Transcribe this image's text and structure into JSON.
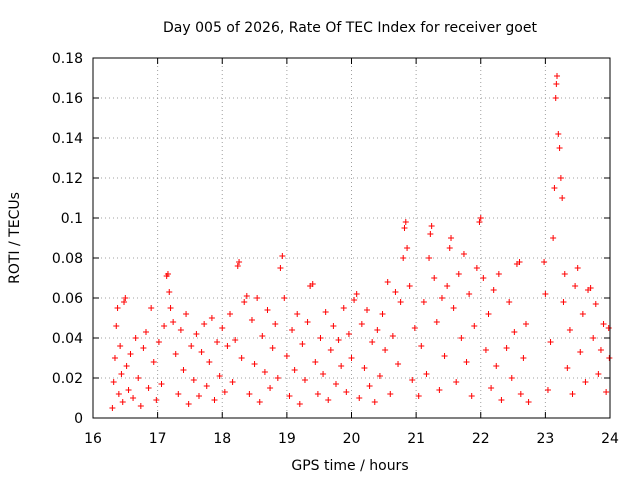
{
  "chart_data": {
    "type": "scatter",
    "title": "Day 005 of 2026, Rate Of TEC Index for receiver goet",
    "xlabel": "GPS time / hours",
    "ylabel": "ROTI / TECUs",
    "xlim": [
      16,
      24
    ],
    "ylim": [
      0,
      0.18
    ],
    "grid": true,
    "x_ticks": [
      16,
      17,
      18,
      19,
      20,
      21,
      22,
      23,
      24
    ],
    "x_tick_labels": [
      "16",
      "17",
      "18",
      "19",
      "20",
      "21",
      "22",
      "23",
      "24"
    ],
    "y_ticks": [
      0,
      0.02,
      0.04,
      0.06,
      0.08,
      0.1,
      0.12,
      0.14,
      0.16,
      0.18
    ],
    "y_tick_labels": [
      "0",
      "0.02",
      "0.04",
      "0.06",
      "0.08",
      "0.1",
      "0.12",
      "0.14",
      "0.16",
      "0.18"
    ],
    "marker": "+",
    "color": "#ff0000",
    "series": [
      {
        "name": "ROTI",
        "points": [
          [
            16.3,
            0.005
          ],
          [
            16.32,
            0.018
          ],
          [
            16.34,
            0.03
          ],
          [
            16.36,
            0.046
          ],
          [
            16.38,
            0.055
          ],
          [
            16.4,
            0.012
          ],
          [
            16.42,
            0.036
          ],
          [
            16.44,
            0.022
          ],
          [
            16.46,
            0.008
          ],
          [
            16.48,
            0.058
          ],
          [
            16.5,
            0.06
          ],
          [
            16.52,
            0.026
          ],
          [
            16.55,
            0.014
          ],
          [
            16.58,
            0.032
          ],
          [
            16.62,
            0.01
          ],
          [
            16.66,
            0.04
          ],
          [
            16.7,
            0.02
          ],
          [
            16.74,
            0.006
          ],
          [
            16.78,
            0.035
          ],
          [
            16.82,
            0.043
          ],
          [
            16.86,
            0.015
          ],
          [
            16.9,
            0.055
          ],
          [
            16.94,
            0.028
          ],
          [
            16.98,
            0.009
          ],
          [
            17.02,
            0.038
          ],
          [
            17.06,
            0.017
          ],
          [
            17.1,
            0.046
          ],
          [
            17.14,
            0.071
          ],
          [
            17.16,
            0.072
          ],
          [
            17.18,
            0.063
          ],
          [
            17.2,
            0.055
          ],
          [
            17.24,
            0.048
          ],
          [
            17.28,
            0.032
          ],
          [
            17.32,
            0.012
          ],
          [
            17.36,
            0.044
          ],
          [
            17.4,
            0.024
          ],
          [
            17.44,
            0.052
          ],
          [
            17.48,
            0.007
          ],
          [
            17.52,
            0.036
          ],
          [
            17.56,
            0.019
          ],
          [
            17.6,
            0.042
          ],
          [
            17.64,
            0.011
          ],
          [
            17.68,
            0.033
          ],
          [
            17.72,
            0.047
          ],
          [
            17.76,
            0.016
          ],
          [
            17.8,
            0.028
          ],
          [
            17.84,
            0.05
          ],
          [
            17.88,
            0.009
          ],
          [
            17.92,
            0.038
          ],
          [
            17.96,
            0.021
          ],
          [
            18.0,
            0.045
          ],
          [
            18.04,
            0.013
          ],
          [
            18.08,
            0.036
          ],
          [
            18.12,
            0.052
          ],
          [
            18.16,
            0.018
          ],
          [
            18.2,
            0.039
          ],
          [
            18.24,
            0.076
          ],
          [
            18.26,
            0.078
          ],
          [
            18.3,
            0.03
          ],
          [
            18.34,
            0.058
          ],
          [
            18.38,
            0.061
          ],
          [
            18.42,
            0.012
          ],
          [
            18.46,
            0.049
          ],
          [
            18.5,
            0.027
          ],
          [
            18.54,
            0.06
          ],
          [
            18.58,
            0.008
          ],
          [
            18.62,
            0.041
          ],
          [
            18.66,
            0.023
          ],
          [
            18.7,
            0.054
          ],
          [
            18.74,
            0.015
          ],
          [
            18.78,
            0.035
          ],
          [
            18.82,
            0.047
          ],
          [
            18.86,
            0.02
          ],
          [
            18.9,
            0.075
          ],
          [
            18.93,
            0.081
          ],
          [
            18.96,
            0.06
          ],
          [
            19.0,
            0.031
          ],
          [
            19.04,
            0.011
          ],
          [
            19.08,
            0.044
          ],
          [
            19.12,
            0.024
          ],
          [
            19.16,
            0.052
          ],
          [
            19.2,
            0.007
          ],
          [
            19.24,
            0.037
          ],
          [
            19.28,
            0.019
          ],
          [
            19.32,
            0.048
          ],
          [
            19.36,
            0.066
          ],
          [
            19.4,
            0.067
          ],
          [
            19.44,
            0.028
          ],
          [
            19.48,
            0.012
          ],
          [
            19.52,
            0.04
          ],
          [
            19.56,
            0.022
          ],
          [
            19.6,
            0.053
          ],
          [
            19.64,
            0.009
          ],
          [
            19.68,
            0.034
          ],
          [
            19.72,
            0.046
          ],
          [
            19.76,
            0.017
          ],
          [
            19.8,
            0.039
          ],
          [
            19.84,
            0.026
          ],
          [
            19.88,
            0.055
          ],
          [
            19.92,
            0.013
          ],
          [
            19.96,
            0.042
          ],
          [
            20.0,
            0.03
          ],
          [
            20.04,
            0.059
          ],
          [
            20.08,
            0.062
          ],
          [
            20.12,
            0.01
          ],
          [
            20.16,
            0.047
          ],
          [
            20.2,
            0.025
          ],
          [
            20.24,
            0.054
          ],
          [
            20.28,
            0.016
          ],
          [
            20.32,
            0.038
          ],
          [
            20.36,
            0.008
          ],
          [
            20.4,
            0.044
          ],
          [
            20.44,
            0.021
          ],
          [
            20.48,
            0.052
          ],
          [
            20.52,
            0.034
          ],
          [
            20.56,
            0.068
          ],
          [
            20.6,
            0.012
          ],
          [
            20.64,
            0.041
          ],
          [
            20.68,
            0.063
          ],
          [
            20.72,
            0.027
          ],
          [
            20.76,
            0.058
          ],
          [
            20.8,
            0.08
          ],
          [
            20.82,
            0.095
          ],
          [
            20.84,
            0.098
          ],
          [
            20.86,
            0.085
          ],
          [
            20.9,
            0.066
          ],
          [
            20.94,
            0.019
          ],
          [
            20.98,
            0.045
          ],
          [
            21.04,
            0.011
          ],
          [
            21.08,
            0.036
          ],
          [
            21.12,
            0.058
          ],
          [
            21.16,
            0.022
          ],
          [
            21.2,
            0.08
          ],
          [
            21.22,
            0.092
          ],
          [
            21.24,
            0.096
          ],
          [
            21.28,
            0.07
          ],
          [
            21.32,
            0.048
          ],
          [
            21.36,
            0.014
          ],
          [
            21.4,
            0.06
          ],
          [
            21.44,
            0.031
          ],
          [
            21.48,
            0.066
          ],
          [
            21.52,
            0.085
          ],
          [
            21.54,
            0.09
          ],
          [
            21.58,
            0.055
          ],
          [
            21.62,
            0.018
          ],
          [
            21.66,
            0.072
          ],
          [
            21.7,
            0.04
          ],
          [
            21.74,
            0.082
          ],
          [
            21.78,
            0.028
          ],
          [
            21.82,
            0.062
          ],
          [
            21.86,
            0.011
          ],
          [
            21.9,
            0.046
          ],
          [
            21.94,
            0.075
          ],
          [
            21.98,
            0.098
          ],
          [
            22.0,
            0.1
          ],
          [
            22.04,
            0.07
          ],
          [
            22.08,
            0.034
          ],
          [
            22.12,
            0.052
          ],
          [
            22.16,
            0.015
          ],
          [
            22.2,
            0.064
          ],
          [
            22.24,
            0.026
          ],
          [
            22.28,
            0.072
          ],
          [
            22.32,
            0.009
          ],
          [
            22.4,
            0.035
          ],
          [
            22.44,
            0.058
          ],
          [
            22.48,
            0.02
          ],
          [
            22.52,
            0.043
          ],
          [
            22.56,
            0.077
          ],
          [
            22.6,
            0.078
          ],
          [
            22.62,
            0.012
          ],
          [
            22.66,
            0.03
          ],
          [
            22.7,
            0.047
          ],
          [
            22.74,
            0.008
          ],
          [
            22.98,
            0.078
          ],
          [
            23.0,
            0.062
          ],
          [
            23.04,
            0.014
          ],
          [
            23.08,
            0.038
          ],
          [
            23.12,
            0.09
          ],
          [
            23.14,
            0.115
          ],
          [
            23.16,
            0.16
          ],
          [
            23.17,
            0.167
          ],
          [
            23.18,
            0.171
          ],
          [
            23.2,
            0.142
          ],
          [
            23.22,
            0.135
          ],
          [
            23.24,
            0.12
          ],
          [
            23.26,
            0.11
          ],
          [
            23.28,
            0.058
          ],
          [
            23.3,
            0.072
          ],
          [
            23.34,
            0.025
          ],
          [
            23.38,
            0.044
          ],
          [
            23.42,
            0.012
          ],
          [
            23.46,
            0.066
          ],
          [
            23.5,
            0.075
          ],
          [
            23.54,
            0.033
          ],
          [
            23.58,
            0.052
          ],
          [
            23.62,
            0.018
          ],
          [
            23.66,
            0.064
          ],
          [
            23.7,
            0.065
          ],
          [
            23.74,
            0.04
          ],
          [
            23.78,
            0.057
          ],
          [
            23.82,
            0.022
          ],
          [
            23.86,
            0.034
          ],
          [
            23.9,
            0.047
          ],
          [
            23.94,
            0.013
          ],
          [
            23.98,
            0.045
          ],
          [
            23.99,
            0.03
          ]
        ]
      }
    ]
  }
}
